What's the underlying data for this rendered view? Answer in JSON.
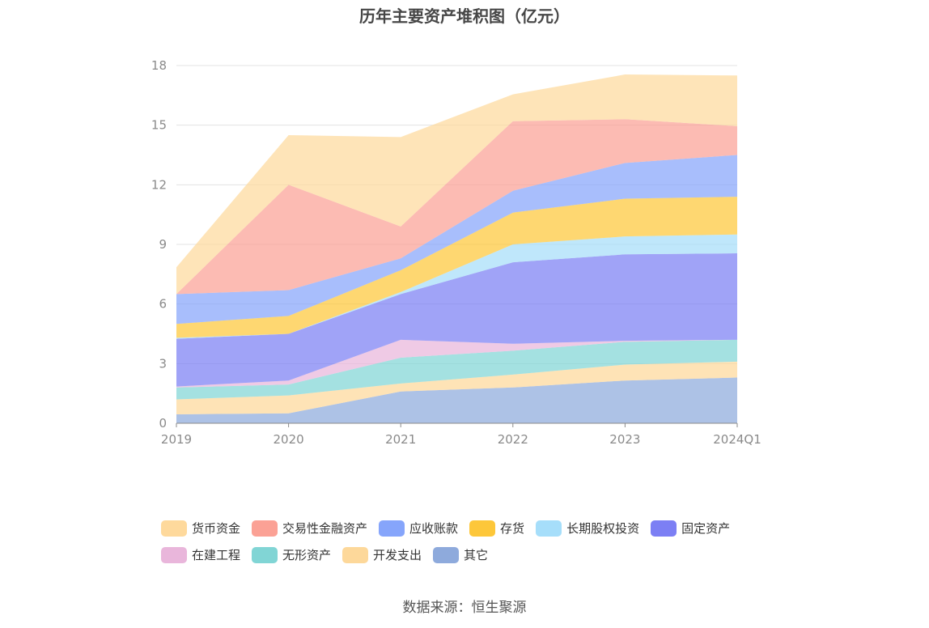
{
  "chart_data": {
    "type": "area",
    "stacked": true,
    "title": "历年主要资产堆积图（亿元）",
    "xlabel": "",
    "ylabel": "",
    "ylim": [
      0,
      18
    ],
    "yticks": [
      0,
      3,
      6,
      9,
      12,
      15,
      18
    ],
    "grid": true,
    "legend_position": "bottom",
    "categories": [
      "2019",
      "2020",
      "2021",
      "2022",
      "2023",
      "2024Q1"
    ],
    "series": [
      {
        "name": "其它",
        "color": "#8eaadc",
        "values": [
          0.45,
          0.5,
          1.6,
          1.8,
          2.15,
          2.3
        ]
      },
      {
        "name": "开发支出",
        "color": "#fdd89a",
        "values": [
          0.75,
          0.9,
          0.4,
          0.65,
          0.8,
          0.8
        ]
      },
      {
        "name": "无形资产",
        "color": "#81d5d5",
        "values": [
          0.6,
          0.55,
          1.3,
          1.2,
          1.15,
          1.1
        ]
      },
      {
        "name": "在建工程",
        "color": "#e9b6db",
        "values": [
          0.05,
          0.2,
          0.9,
          0.35,
          0.05,
          0.0
        ]
      },
      {
        "name": "固定资产",
        "color": "#7c7ff4",
        "values": [
          2.4,
          2.35,
          2.3,
          4.1,
          4.35,
          4.35
        ]
      },
      {
        "name": "长期股权投资",
        "color": "#a6defa",
        "values": [
          0.05,
          0.0,
          0.1,
          0.9,
          0.9,
          0.95
        ]
      },
      {
        "name": "存货",
        "color": "#fdc73a",
        "values": [
          0.7,
          0.9,
          1.1,
          1.6,
          1.9,
          1.9
        ]
      },
      {
        "name": "应收账款",
        "color": "#86a5fb",
        "values": [
          1.5,
          1.3,
          0.6,
          1.1,
          1.8,
          2.1
        ]
      },
      {
        "name": "交易性金融资产",
        "color": "#fba195",
        "values": [
          0.0,
          5.3,
          1.6,
          3.5,
          2.2,
          1.45
        ]
      },
      {
        "name": "货币资金",
        "color": "#fed99c",
        "values": [
          1.35,
          2.5,
          4.5,
          1.35,
          2.25,
          2.55
        ]
      }
    ]
  },
  "legend": {
    "row1": [
      {
        "label": "货币资金",
        "color": "#fed99c"
      },
      {
        "label": "交易性金融资产",
        "color": "#fba195"
      },
      {
        "label": "应收账款",
        "color": "#86a5fb"
      },
      {
        "label": "存货",
        "color": "#fdc73a"
      },
      {
        "label": "长期股权投资",
        "color": "#a6defa"
      },
      {
        "label": "固定资产",
        "color": "#7c7ff4"
      }
    ],
    "row2": [
      {
        "label": "在建工程",
        "color": "#e9b6db"
      },
      {
        "label": "无形资产",
        "color": "#81d5d5"
      },
      {
        "label": "开发支出",
        "color": "#fdd89a"
      },
      {
        "label": "其它",
        "color": "#8eaadc"
      }
    ]
  },
  "source": "数据来源：恒生聚源"
}
